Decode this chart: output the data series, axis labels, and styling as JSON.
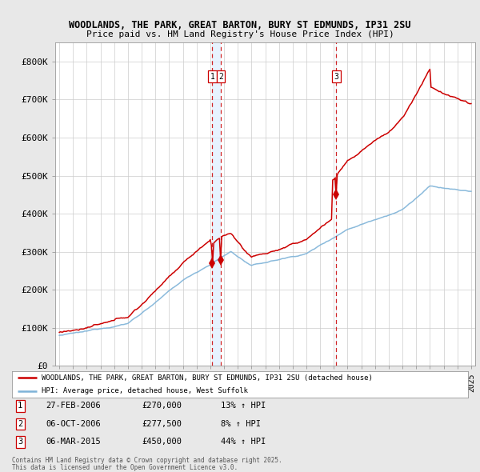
{
  "title_line1": "WOODLANDS, THE PARK, GREAT BARTON, BURY ST EDMUNDS, IP31 2SU",
  "title_line2": "Price paid vs. HM Land Registry's House Price Index (HPI)",
  "background_color": "#e8e8e8",
  "plot_background": "#ffffff",
  "y_ticks": [
    0,
    100000,
    200000,
    300000,
    400000,
    500000,
    600000,
    700000,
    800000
  ],
  "y_tick_labels": [
    "£0",
    "£100K",
    "£200K",
    "£300K",
    "£400K",
    "£500K",
    "£600K",
    "£700K",
    "£800K"
  ],
  "ylim": [
    0,
    850000
  ],
  "xlim": [
    1994.7,
    2025.3
  ],
  "red_line_color": "#cc0000",
  "blue_line_color": "#7eb3d8",
  "vline_color": "#cc0000",
  "vline_shade_color": "#ddeeff",
  "legend_label_red": "WOODLANDS, THE PARK, GREAT BARTON, BURY ST EDMUNDS, IP31 2SU (detached house)",
  "legend_label_blue": "HPI: Average price, detached house, West Suffolk",
  "transactions": [
    {
      "num": 1,
      "date": "27-FEB-2006",
      "price": 270000,
      "hpi_pct": "13% ↑ HPI",
      "x_year": 2006.15
    },
    {
      "num": 2,
      "date": "06-OCT-2006",
      "price": 277500,
      "hpi_pct": "8% ↑ HPI",
      "x_year": 2006.77
    },
    {
      "num": 3,
      "date": "06-MAR-2015",
      "price": 450000,
      "hpi_pct": "44% ↑ HPI",
      "x_year": 2015.18
    }
  ],
  "footer_line1": "Contains HM Land Registry data © Crown copyright and database right 2025.",
  "footer_line2": "This data is licensed under the Open Government Licence v3.0."
}
